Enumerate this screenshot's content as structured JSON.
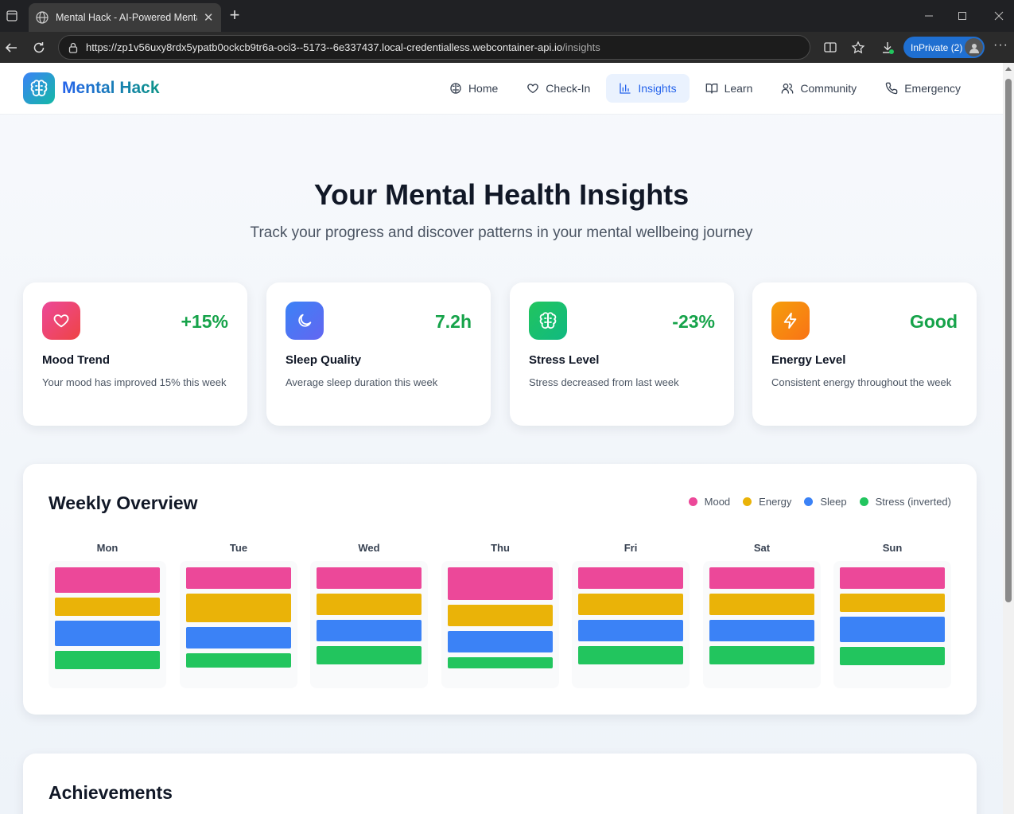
{
  "browser": {
    "tab_title": "Mental Hack - AI-Powered Menta",
    "url_host": "https://zp1v56uxy8rdx5ypatb0ockcb9tr6a-oci3--5173--6e337437.local-credentialless.webcontainer-api.io",
    "url_path": "/insights",
    "inprivate_label": "InPrivate (2)"
  },
  "header": {
    "brand": "Mental Hack",
    "nav": [
      {
        "label": "Home",
        "icon": "brain-icon"
      },
      {
        "label": "Check-In",
        "icon": "heart-icon"
      },
      {
        "label": "Insights",
        "icon": "bar-chart-icon",
        "active": true
      },
      {
        "label": "Learn",
        "icon": "book-icon"
      },
      {
        "label": "Community",
        "icon": "users-icon"
      },
      {
        "label": "Emergency",
        "icon": "phone-icon"
      }
    ]
  },
  "hero": {
    "title": "Your Mental Health Insights",
    "subtitle": "Track your progress and discover patterns in your mental wellbeing journey"
  },
  "stats": [
    {
      "value": "+15%",
      "title": "Mood Trend",
      "desc": "Your mood has improved 15% this week",
      "icon": "heart-icon",
      "colors": [
        "#ec4899",
        "#ef4444"
      ]
    },
    {
      "value": "7.2h",
      "title": "Sleep Quality",
      "desc": "Average sleep duration this week",
      "icon": "moon-icon",
      "colors": [
        "#3b82f6",
        "#6366f1"
      ]
    },
    {
      "value": "-23%",
      "title": "Stress Level",
      "desc": "Stress decreased from last week",
      "icon": "brain-icon",
      "colors": [
        "#22c55e",
        "#10b981"
      ]
    },
    {
      "value": "Good",
      "title": "Energy Level",
      "desc": "Consistent energy throughout the week",
      "icon": "zap-icon",
      "colors": [
        "#f59e0b",
        "#f97316"
      ]
    }
  ],
  "weekly": {
    "title": "Weekly Overview",
    "legend": [
      {
        "label": "Mood",
        "color": "#ec4899"
      },
      {
        "label": "Energy",
        "color": "#eab308"
      },
      {
        "label": "Sleep",
        "color": "#3b82f6"
      },
      {
        "label": "Stress (inverted)",
        "color": "#22c55e"
      }
    ],
    "chart_data": {
      "type": "bar",
      "categories": [
        "Mon",
        "Tue",
        "Wed",
        "Thu",
        "Fri",
        "Sat",
        "Sun"
      ],
      "series": [
        {
          "name": "Mood",
          "values": [
            7,
            6,
            6,
            9,
            6,
            6,
            6
          ]
        },
        {
          "name": "Energy",
          "values": [
            5,
            8,
            6,
            6,
            6,
            6,
            5
          ]
        },
        {
          "name": "Sleep",
          "values": [
            7,
            6,
            6,
            6,
            6,
            6,
            7
          ]
        },
        {
          "name": "Stress (inverted)",
          "values": [
            5,
            4,
            5,
            3,
            5,
            5,
            5
          ]
        }
      ]
    }
  },
  "achievements": {
    "title": "Achievements"
  }
}
